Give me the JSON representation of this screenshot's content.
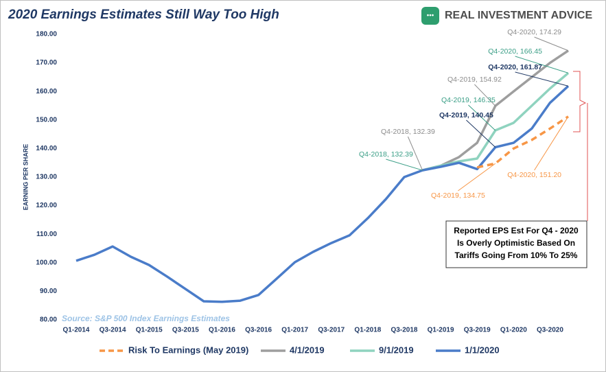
{
  "brand": "REAL INVESTMENT ADVICE",
  "chart_data": {
    "type": "line",
    "title": "2020 Earnings Estimates Still Way Too High",
    "y_label": "EARNING PER SHARE",
    "source": "Source: S&P 500 Index Earnings Estimates",
    "note": [
      "Reported EPS Est For Q4 - 2020",
      "Is Overly Optimistic Based On",
      "Tariffs Going From 10% To 25%"
    ],
    "categories": [
      "Q1-2014",
      null,
      "Q3-2014",
      null,
      "Q1-2015",
      null,
      "Q3-2015",
      null,
      "Q1-2016",
      null,
      "Q3-2016",
      null,
      "Q1-2017",
      null,
      "Q3-2017",
      null,
      "Q1-2018",
      null,
      "Q3-2018",
      null,
      "Q1-2019",
      null,
      "Q3-2019",
      null,
      "Q1-2020",
      null,
      "Q3-2020",
      null
    ],
    "ylim": [
      80,
      180
    ],
    "yticks": [
      {
        "value": 80,
        "label": "80.00"
      },
      {
        "value": 90,
        "label": "90.00"
      },
      {
        "value": 100,
        "label": "100.00"
      },
      {
        "value": 110,
        "label": "110.00"
      },
      {
        "value": 120,
        "label": "120.00"
      },
      {
        "value": 130,
        "label": "130.00"
      },
      {
        "value": 140,
        "label": "140.00"
      },
      {
        "value": 150,
        "label": "150.00"
      },
      {
        "value": 160,
        "label": "160.00"
      },
      {
        "value": 170,
        "label": "170.00"
      },
      {
        "value": 180,
        "label": "180.00"
      }
    ],
    "grid": false,
    "legend": "bottom",
    "series": [
      {
        "name": "Risk To Earnings (May 2019)",
        "color": "#f79646",
        "label_color": "#f79646",
        "dashed": true,
        "values": [
          null,
          null,
          null,
          null,
          null,
          null,
          null,
          null,
          null,
          null,
          null,
          null,
          null,
          null,
          null,
          null,
          null,
          null,
          null,
          null,
          null,
          null,
          133.4,
          134.75,
          140,
          143,
          147,
          151.2
        ],
        "value_labels": [
          null,
          null,
          null,
          null,
          null,
          null,
          null,
          null,
          null,
          null,
          null,
          null,
          null,
          null,
          null,
          null,
          null,
          null,
          null,
          null,
          null,
          null,
          null,
          "Q4-2019, 134.75",
          null,
          null,
          null,
          "Q4-2020, 151.20"
        ]
      },
      {
        "name": "4/1/2019",
        "color": "#9e9e9e",
        "label_color": "#8c8c8c",
        "dashed": false,
        "values": [
          null,
          null,
          null,
          null,
          null,
          null,
          null,
          null,
          null,
          null,
          null,
          null,
          null,
          null,
          null,
          null,
          null,
          null,
          null,
          132.39,
          134,
          137,
          142,
          154.92,
          160,
          165,
          170,
          174.29
        ],
        "value_labels": [
          null,
          null,
          null,
          null,
          null,
          null,
          null,
          null,
          null,
          null,
          null,
          null,
          null,
          null,
          null,
          null,
          null,
          null,
          null,
          "Q4-2018, 132.39",
          null,
          null,
          null,
          "Q4-2019, 154.92",
          null,
          null,
          null,
          "Q4-2020, 174.29"
        ]
      },
      {
        "name": "9/1/2019",
        "color": "#8fd3bf",
        "label_color": "#3a9e86",
        "dashed": false,
        "values": [
          null,
          null,
          null,
          null,
          null,
          null,
          null,
          null,
          null,
          null,
          null,
          null,
          null,
          null,
          null,
          null,
          null,
          null,
          null,
          132.39,
          134,
          135.5,
          136.5,
          146.35,
          149,
          155,
          161,
          166.45
        ],
        "value_labels": [
          null,
          null,
          null,
          null,
          null,
          null,
          null,
          null,
          null,
          null,
          null,
          null,
          null,
          null,
          null,
          null,
          null,
          null,
          null,
          "Q4-2018, 132.39",
          null,
          null,
          null,
          "Q4-2019, 146.35",
          null,
          null,
          null,
          "Q4-2020, 166.45"
        ]
      },
      {
        "name": "1/1/2020",
        "color": "#4a7cc9",
        "label_color": "#1f3864",
        "dashed": false,
        "values": [
          100.7,
          102.8,
          105.7,
          102.1,
          99.2,
          95.1,
          90.8,
          86.5,
          86.3,
          86.7,
          88.7,
          94.4,
          100.2,
          103.8,
          106.9,
          109.6,
          115.6,
          122.3,
          130.0,
          132.39,
          133.6,
          135.0,
          132.8,
          140.45,
          142,
          147,
          156,
          161.87
        ],
        "value_labels": [
          null,
          null,
          null,
          null,
          null,
          null,
          null,
          null,
          null,
          null,
          null,
          null,
          null,
          null,
          null,
          null,
          null,
          null,
          null,
          null,
          null,
          null,
          null,
          "Q4-2019, 140.45",
          null,
          null,
          null,
          "Q4-2020, 161.87"
        ]
      }
    ]
  }
}
